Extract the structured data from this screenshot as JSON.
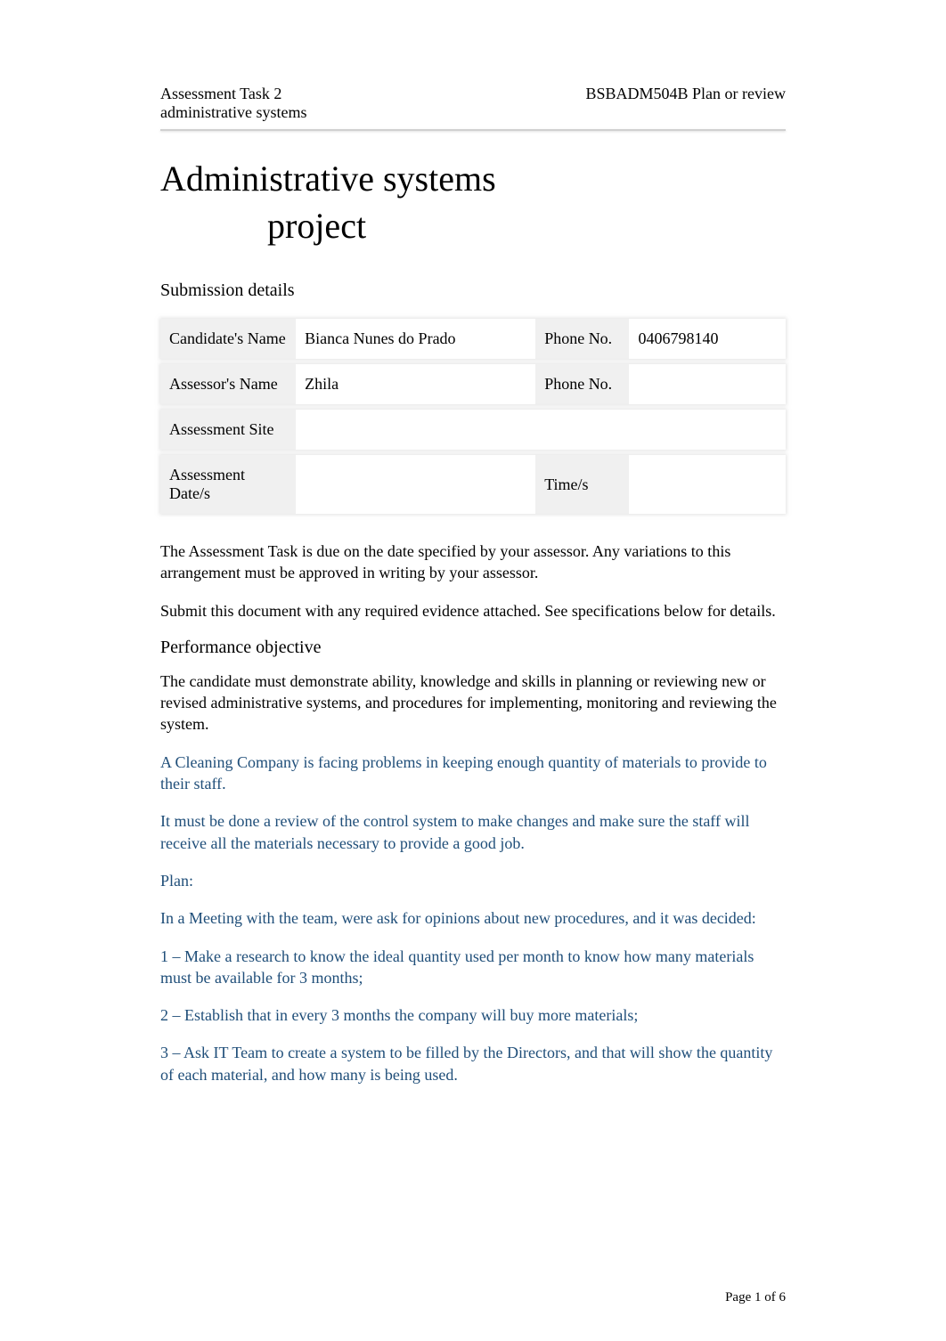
{
  "header": {
    "left_line1": "Assessment Task 2",
    "left_line2": "administrative systems",
    "right_line1": "BSBADM504B Plan or review"
  },
  "title_line1": "Administrative systems",
  "title_line2": "project",
  "submission_heading": "Submission details",
  "details": {
    "row1": {
      "label": "Candidate's Name",
      "value": "Bianca Nunes do Prado",
      "label2": "Phone No.",
      "value2": "0406798140"
    },
    "row2": {
      "label": "Assessor's Name",
      "value": "Zhila",
      "label2": "Phone No.",
      "value2": ""
    },
    "row3": {
      "label": "Assessment Site",
      "value": "",
      "label2": "",
      "value2": ""
    },
    "row4": {
      "label": "Assessment Date/s",
      "value": "",
      "label2": "Time/s",
      "value2": ""
    }
  },
  "paragraphs": {
    "p1": "The Assessment Task is due on the date specified by your assessor. Any variations to this arrangement must be approved in writing by your assessor.",
    "p2": "Submit this document with any required evidence attached. See specifications below for details."
  },
  "performance_heading": "Performance objective",
  "performance": {
    "p1": "The candidate must demonstrate ability, knowledge and skills in planning or reviewing new or revised administrative systems, and procedures for implementing, monitoring and reviewing the system.",
    "p2": "A Cleaning Company is facing problems in keeping enough quantity of materials to provide to their staff.",
    "p3": "It must be done a review of the control system to make changes and make sure the staff will receive all the materials necessary to provide a good job.",
    "p4": "Plan:",
    "p5": "In a Meeting with the team, were ask for opinions about new procedures, and it was decided:",
    "p6": "1 – Make a research to know the ideal quantity used per month to know how many materials must be available for 3 months;",
    "p7": "2 – Establish that in every 3 months the company will buy more materials;",
    "p8": "3 – Ask IT Team to create a system to be filled by the Directors, and that will show the quantity of each material, and how many is being used."
  },
  "footer": "Page 1 of 6",
  "colors": {
    "text_black": "#000000",
    "text_teal": "#1f4e79",
    "row_bg": "#f0f0f0",
    "underline": "#d0d0d0"
  },
  "typography": {
    "body_fontsize": 18,
    "title_fontsize": 40,
    "heading_fontsize": 20,
    "footer_fontsize": 15,
    "font_family": "Times New Roman"
  }
}
